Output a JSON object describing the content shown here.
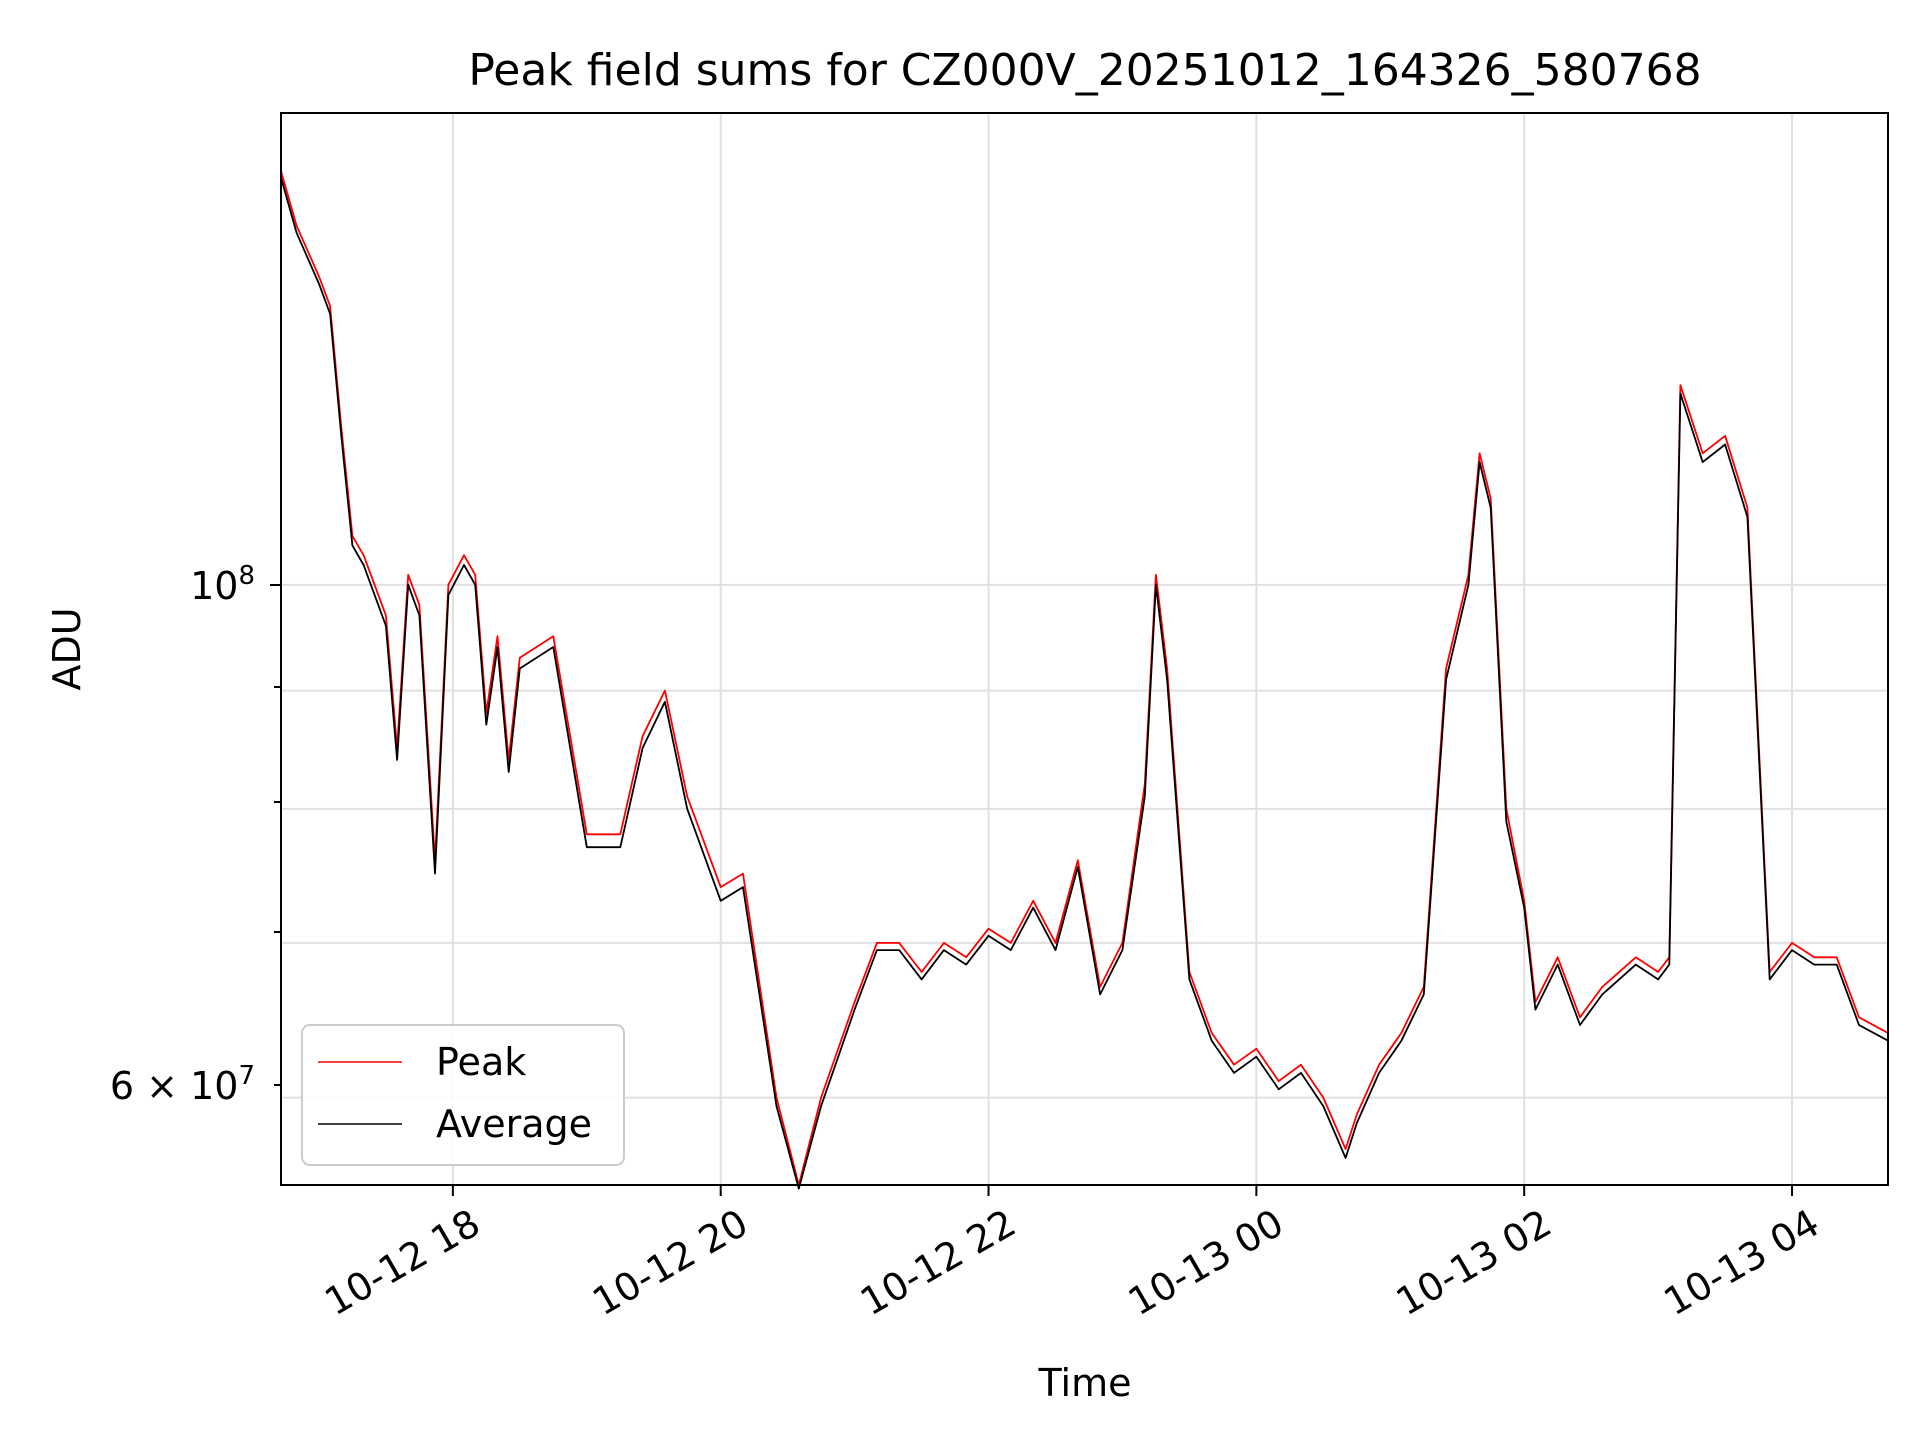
{
  "chart_data": {
    "type": "line",
    "title": "Peak field sums for CZ000V_20251012_164326_580768",
    "xlabel": "Time",
    "ylabel": "ADU",
    "y_scale": "log",
    "grid": true,
    "legend_position": "lower-left",
    "x_tick_labels": [
      "10-12 18",
      "10-12 20",
      "10-12 22",
      "10-13 00",
      "10-13 02",
      "10-13 04"
    ],
    "y_tick_labels": {
      "major": "10^8",
      "minor": "6×10^7"
    },
    "xlim": [
      "2025-10-12 16:43",
      "2025-10-13 04:43"
    ],
    "ylim": [
      55000000,
      160000000
    ],
    "colors": {
      "peak": "#ff0000",
      "average": "#000000",
      "grid": "#e0e0e0"
    },
    "series": [
      {
        "name": "Peak",
        "points": [
          [
            "2025-10-12 16:43",
            151000000
          ],
          [
            "2025-10-12 16:50",
            143000000
          ],
          [
            "2025-10-12 17:00",
            136000000
          ],
          [
            "2025-10-12 17:05",
            132000000
          ],
          [
            "2025-10-12 17:10",
            117000000
          ],
          [
            "2025-10-12 17:15",
            105000000
          ],
          [
            "2025-10-12 17:20",
            103000000
          ],
          [
            "2025-10-12 17:30",
            97000000
          ],
          [
            "2025-10-12 17:35",
            85000000
          ],
          [
            "2025-10-12 17:40",
            101000000
          ],
          [
            "2025-10-12 17:45",
            98000000
          ],
          [
            "2025-10-12 17:52",
            76000000
          ],
          [
            "2025-10-12 17:58",
            100000000
          ],
          [
            "2025-10-12 18:05",
            103000000
          ],
          [
            "2025-10-12 18:10",
            101000000
          ],
          [
            "2025-10-12 18:15",
            88000000
          ],
          [
            "2025-10-12 18:20",
            95000000
          ],
          [
            "2025-10-12 18:25",
            84000000
          ],
          [
            "2025-10-12 18:30",
            93000000
          ],
          [
            "2025-10-12 18:45",
            95000000
          ],
          [
            "2025-10-12 19:00",
            78000000
          ],
          [
            "2025-10-12 19:15",
            78000000
          ],
          [
            "2025-10-12 19:25",
            86000000
          ],
          [
            "2025-10-12 19:35",
            90000000
          ],
          [
            "2025-10-12 19:45",
            81000000
          ],
          [
            "2025-10-12 20:00",
            74000000
          ],
          [
            "2025-10-12 20:10",
            75000000
          ],
          [
            "2025-10-12 20:25",
            60000000
          ],
          [
            "2025-10-12 20:35",
            55000000
          ],
          [
            "2025-10-12 20:45",
            60000000
          ],
          [
            "2025-10-12 21:00",
            66000000
          ],
          [
            "2025-10-12 21:10",
            70000000
          ],
          [
            "2025-10-12 21:20",
            70000000
          ],
          [
            "2025-10-12 21:30",
            68000000
          ],
          [
            "2025-10-12 21:40",
            70000000
          ],
          [
            "2025-10-12 21:50",
            69000000
          ],
          [
            "2025-10-12 22:00",
            71000000
          ],
          [
            "2025-10-12 22:10",
            70000000
          ],
          [
            "2025-10-12 22:20",
            73000000
          ],
          [
            "2025-10-12 22:30",
            70000000
          ],
          [
            "2025-10-12 22:40",
            76000000
          ],
          [
            "2025-10-12 22:50",
            67000000
          ],
          [
            "2025-10-12 23:00",
            70000000
          ],
          [
            "2025-10-12 23:10",
            82000000
          ],
          [
            "2025-10-12 23:15",
            101000000
          ],
          [
            "2025-10-12 23:20",
            92000000
          ],
          [
            "2025-10-12 23:30",
            68000000
          ],
          [
            "2025-10-12 23:40",
            64000000
          ],
          [
            "2025-10-12 23:50",
            62000000
          ],
          [
            "2025-10-13 00:00",
            63000000
          ],
          [
            "2025-10-13 00:10",
            61000000
          ],
          [
            "2025-10-13 00:20",
            62000000
          ],
          [
            "2025-10-13 00:30",
            60000000
          ],
          [
            "2025-10-13 00:40",
            57000000
          ],
          [
            "2025-10-13 00:45",
            59000000
          ],
          [
            "2025-10-13 00:55",
            62000000
          ],
          [
            "2025-10-13 01:05",
            64000000
          ],
          [
            "2025-10-13 01:15",
            67000000
          ],
          [
            "2025-10-13 01:25",
            92000000
          ],
          [
            "2025-10-13 01:35",
            101000000
          ],
          [
            "2025-10-13 01:40",
            114000000
          ],
          [
            "2025-10-13 01:45",
            109000000
          ],
          [
            "2025-10-13 01:52",
            80000000
          ],
          [
            "2025-10-13 02:00",
            73000000
          ],
          [
            "2025-10-13 02:05",
            66000000
          ],
          [
            "2025-10-13 02:15",
            69000000
          ],
          [
            "2025-10-13 02:25",
            65000000
          ],
          [
            "2025-10-13 02:35",
            67000000
          ],
          [
            "2025-10-13 02:50",
            69000000
          ],
          [
            "2025-10-13 03:00",
            68000000
          ],
          [
            "2025-10-13 03:05",
            69000000
          ],
          [
            "2025-10-13 03:10",
            122000000
          ],
          [
            "2025-10-13 03:20",
            114000000
          ],
          [
            "2025-10-13 03:30",
            116000000
          ],
          [
            "2025-10-13 03:40",
            108000000
          ],
          [
            "2025-10-13 03:50",
            68000000
          ],
          [
            "2025-10-13 04:00",
            70000000
          ],
          [
            "2025-10-13 04:10",
            69000000
          ],
          [
            "2025-10-13 04:20",
            69000000
          ],
          [
            "2025-10-13 04:30",
            65000000
          ],
          [
            "2025-10-13 04:43",
            64000000
          ]
        ]
      },
      {
        "name": "Average",
        "points": [
          [
            "2025-10-12 16:43",
            150000000
          ],
          [
            "2025-10-12 16:50",
            142000000
          ],
          [
            "2025-10-12 17:00",
            135000000
          ],
          [
            "2025-10-12 17:05",
            131000000
          ],
          [
            "2025-10-12 17:10",
            116000000
          ],
          [
            "2025-10-12 17:15",
            104000000
          ],
          [
            "2025-10-12 17:20",
            102000000
          ],
          [
            "2025-10-12 17:30",
            96000000
          ],
          [
            "2025-10-12 17:35",
            84000000
          ],
          [
            "2025-10-12 17:40",
            100000000
          ],
          [
            "2025-10-12 17:45",
            97000000
          ],
          [
            "2025-10-12 17:52",
            75000000
          ],
          [
            "2025-10-12 17:58",
            99000000
          ],
          [
            "2025-10-12 18:05",
            102000000
          ],
          [
            "2025-10-12 18:10",
            100000000
          ],
          [
            "2025-10-12 18:15",
            87000000
          ],
          [
            "2025-10-12 18:20",
            94000000
          ],
          [
            "2025-10-12 18:25",
            83000000
          ],
          [
            "2025-10-12 18:30",
            92000000
          ],
          [
            "2025-10-12 18:45",
            94000000
          ],
          [
            "2025-10-12 19:00",
            77000000
          ],
          [
            "2025-10-12 19:15",
            77000000
          ],
          [
            "2025-10-12 19:25",
            85000000
          ],
          [
            "2025-10-12 19:35",
            89000000
          ],
          [
            "2025-10-12 19:45",
            80000000
          ],
          [
            "2025-10-12 20:00",
            73000000
          ],
          [
            "2025-10-12 20:10",
            74000000
          ],
          [
            "2025-10-12 20:25",
            59500000
          ],
          [
            "2025-10-12 20:35",
            54800000
          ],
          [
            "2025-10-12 20:45",
            59500000
          ],
          [
            "2025-10-12 21:00",
            65500000
          ],
          [
            "2025-10-12 21:10",
            69500000
          ],
          [
            "2025-10-12 21:20",
            69500000
          ],
          [
            "2025-10-12 21:30",
            67500000
          ],
          [
            "2025-10-12 21:40",
            69500000
          ],
          [
            "2025-10-12 21:50",
            68500000
          ],
          [
            "2025-10-12 22:00",
            70500000
          ],
          [
            "2025-10-12 22:10",
            69500000
          ],
          [
            "2025-10-12 22:20",
            72500000
          ],
          [
            "2025-10-12 22:30",
            69500000
          ],
          [
            "2025-10-12 22:40",
            75500000
          ],
          [
            "2025-10-12 22:50",
            66500000
          ],
          [
            "2025-10-12 23:00",
            69500000
          ],
          [
            "2025-10-12 23:10",
            81000000
          ],
          [
            "2025-10-12 23:15",
            100000000
          ],
          [
            "2025-10-12 23:20",
            91000000
          ],
          [
            "2025-10-12 23:30",
            67500000
          ],
          [
            "2025-10-12 23:40",
            63500000
          ],
          [
            "2025-10-12 23:50",
            61500000
          ],
          [
            "2025-10-13 00:00",
            62500000
          ],
          [
            "2025-10-13 00:10",
            60500000
          ],
          [
            "2025-10-13 00:20",
            61500000
          ],
          [
            "2025-10-13 00:30",
            59500000
          ],
          [
            "2025-10-13 00:40",
            56500000
          ],
          [
            "2025-10-13 00:45",
            58500000
          ],
          [
            "2025-10-13 00:55",
            61500000
          ],
          [
            "2025-10-13 01:05",
            63500000
          ],
          [
            "2025-10-13 01:15",
            66500000
          ],
          [
            "2025-10-13 01:25",
            91000000
          ],
          [
            "2025-10-13 01:35",
            100000000
          ],
          [
            "2025-10-13 01:40",
            113000000
          ],
          [
            "2025-10-13 01:45",
            108000000
          ],
          [
            "2025-10-13 01:52",
            79000000
          ],
          [
            "2025-10-13 02:00",
            72500000
          ],
          [
            "2025-10-13 02:05",
            65500000
          ],
          [
            "2025-10-13 02:15",
            68500000
          ],
          [
            "2025-10-13 02:25",
            64500000
          ],
          [
            "2025-10-13 02:35",
            66500000
          ],
          [
            "2025-10-13 02:50",
            68500000
          ],
          [
            "2025-10-13 03:00",
            67500000
          ],
          [
            "2025-10-13 03:05",
            68500000
          ],
          [
            "2025-10-13 03:10",
            121000000
          ],
          [
            "2025-10-13 03:20",
            113000000
          ],
          [
            "2025-10-13 03:30",
            115000000
          ],
          [
            "2025-10-13 03:40",
            107000000
          ],
          [
            "2025-10-13 03:50",
            67500000
          ],
          [
            "2025-10-13 04:00",
            69500000
          ],
          [
            "2025-10-13 04:10",
            68500000
          ],
          [
            "2025-10-13 04:20",
            68500000
          ],
          [
            "2025-10-13 04:30",
            64500000
          ],
          [
            "2025-10-13 04:43",
            63500000
          ]
        ]
      }
    ]
  }
}
